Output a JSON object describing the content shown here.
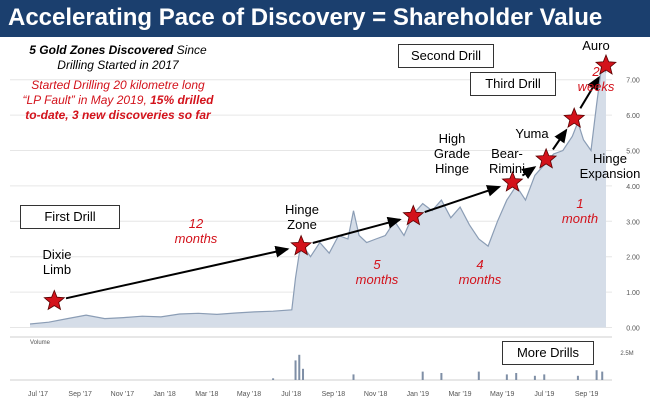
{
  "page": {
    "title": "Accelerating Pace of Discovery = Shareholder Value"
  },
  "notes": {
    "line1_bold": "5 Gold Zones Discovered",
    "line1_rest": " Since",
    "line2": "Drilling Started in 2017",
    "red1": "Started Drilling 20 kilometre long",
    "red2_a": "“LP Fault” in May 2019, ",
    "red2_b": "15% drilled",
    "red3": "to-date, 3 new discoveries so far"
  },
  "boxes": {
    "first_drill": "First Drill",
    "second_drill": "Second Drill",
    "third_drill": "Third Drill",
    "more_drills": "More Drills"
  },
  "colors": {
    "banner": "#1b3f6e",
    "price_line": "#8b9db5",
    "price_fill": "#d5dde8",
    "star": "#d3121b",
    "interval_text": "#d3121b",
    "arrow": "#000000",
    "grid": "#e6e6e6"
  },
  "chart_data": {
    "type": "line",
    "x_ticks": [
      "Jul '17",
      "Sep '17",
      "Nov '17",
      "Jan '18",
      "Mar '18",
      "May '18",
      "Jul '18",
      "Sep '18",
      "Nov '18",
      "Jan '19",
      "Mar '19",
      "May '19",
      "Jul '19",
      "Sep '19"
    ],
    "y_ticks": [
      "0.00",
      "1.00",
      "2.00",
      "3.00",
      "4.00",
      "5.00",
      "6.00",
      "7.00"
    ],
    "ylim": [
      0,
      8
    ],
    "volume_label": "Volume",
    "volume_tick": "2.5M",
    "price_series": [
      [
        0,
        0.1
      ],
      [
        1,
        0.15
      ],
      [
        2,
        0.25
      ],
      [
        3,
        0.35
      ],
      [
        4,
        0.25
      ],
      [
        5,
        0.28
      ],
      [
        6,
        0.32
      ],
      [
        7,
        0.3
      ],
      [
        8,
        0.38
      ],
      [
        9,
        0.4
      ],
      [
        10,
        0.37
      ],
      [
        11,
        0.41
      ],
      [
        12,
        0.44
      ],
      [
        13,
        0.46
      ],
      [
        14,
        0.5
      ],
      [
        14.2,
        1.4
      ],
      [
        14.4,
        2.1
      ],
      [
        14.6,
        2.3
      ],
      [
        15,
        2.0
      ],
      [
        15.5,
        2.4
      ],
      [
        16,
        2.1
      ],
      [
        16.5,
        2.6
      ],
      [
        17,
        2.5
      ],
      [
        17.3,
        3.3
      ],
      [
        17.6,
        2.6
      ],
      [
        18,
        2.4
      ],
      [
        18.5,
        2.5
      ],
      [
        19,
        2.6
      ],
      [
        19.5,
        3.0
      ],
      [
        20,
        2.6
      ],
      [
        20.5,
        3.2
      ],
      [
        21,
        3.5
      ],
      [
        21.5,
        3.3
      ],
      [
        22,
        3.6
      ],
      [
        22.5,
        3.1
      ],
      [
        23,
        3.4
      ],
      [
        23.5,
        2.9
      ],
      [
        24,
        2.5
      ],
      [
        24.5,
        2.3
      ],
      [
        25,
        3.0
      ],
      [
        25.5,
        3.6
      ],
      [
        26,
        4.0
      ],
      [
        26.5,
        3.6
      ],
      [
        27,
        4.3
      ],
      [
        27.5,
        4.6
      ],
      [
        28,
        4.9
      ],
      [
        28.5,
        5.0
      ],
      [
        29,
        5.4
      ],
      [
        29.3,
        5.8
      ],
      [
        29.6,
        5.3
      ],
      [
        30,
        5.0
      ],
      [
        30.3,
        6.3
      ],
      [
        30.6,
        7.5
      ],
      [
        30.8,
        7.2
      ]
    ],
    "volume_bars": [
      [
        13,
        0.06
      ],
      [
        14.2,
        0.7
      ],
      [
        14.4,
        0.9
      ],
      [
        14.6,
        0.4
      ],
      [
        17.3,
        0.2
      ],
      [
        21,
        0.3
      ],
      [
        22,
        0.25
      ],
      [
        24,
        0.3
      ],
      [
        25.5,
        0.2
      ],
      [
        26,
        0.25
      ],
      [
        27,
        0.15
      ],
      [
        27.5,
        0.2
      ],
      [
        29.3,
        0.15
      ],
      [
        30.3,
        0.35
      ],
      [
        30.6,
        0.3
      ]
    ],
    "annotations": [
      {
        "x": 1.3,
        "y": 0.75,
        "label": "Dixie Limb"
      },
      {
        "x": 14.5,
        "y": 2.3,
        "label": "Hinge Zone"
      },
      {
        "x": 20.5,
        "y": 3.15,
        "label": "High Grade Hinge"
      },
      {
        "x": 25.8,
        "y": 4.1,
        "label": "Bear-Rimini"
      },
      {
        "x": 27.6,
        "y": 4.75,
        "label": "Yuma"
      },
      {
        "x": 29.1,
        "y": 5.9,
        "label": "Hinge Expansion"
      },
      {
        "x": 30.8,
        "y": 7.4,
        "label": "Auro"
      }
    ],
    "intervals": [
      {
        "from": 0,
        "to": 1,
        "number": "12",
        "unit": "months"
      },
      {
        "from": 1,
        "to": 2,
        "number": "5",
        "unit": "months"
      },
      {
        "from": 2,
        "to": 3,
        "number": "4",
        "unit": "months"
      },
      {
        "from": 4,
        "to": 5,
        "number": "1",
        "unit": "month"
      },
      {
        "from": 5,
        "to": 6,
        "number": "2",
        "unit": "weeks"
      }
    ]
  }
}
